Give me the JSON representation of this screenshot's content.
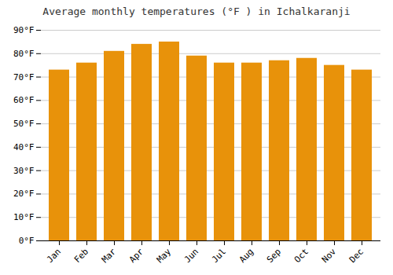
{
  "chart_data": {
    "type": "bar",
    "title": "Average monthly temperatures (°F ) in Ichalkaranji",
    "categories": [
      "Jan",
      "Feb",
      "Mar",
      "Apr",
      "May",
      "Jun",
      "Jul",
      "Aug",
      "Sep",
      "Oct",
      "Nov",
      "Dec"
    ],
    "values": [
      73,
      76,
      81,
      84,
      85,
      79,
      76,
      76,
      77,
      78,
      75,
      73
    ],
    "color": "#E8920A",
    "ylim": [
      0,
      90
    ],
    "yticks": [
      {
        "value": 0,
        "label": "0°F"
      },
      {
        "value": 10,
        "label": "10°F"
      },
      {
        "value": 20,
        "label": "20°F"
      },
      {
        "value": 30,
        "label": "30°F"
      },
      {
        "value": 40,
        "label": "40°F"
      },
      {
        "value": 50,
        "label": "50°F"
      },
      {
        "value": 60,
        "label": "60°F"
      },
      {
        "value": 70,
        "label": "70°F"
      },
      {
        "value": 80,
        "label": "80°F"
      },
      {
        "value": 90,
        "label": "90°F"
      }
    ],
    "grid": true
  }
}
